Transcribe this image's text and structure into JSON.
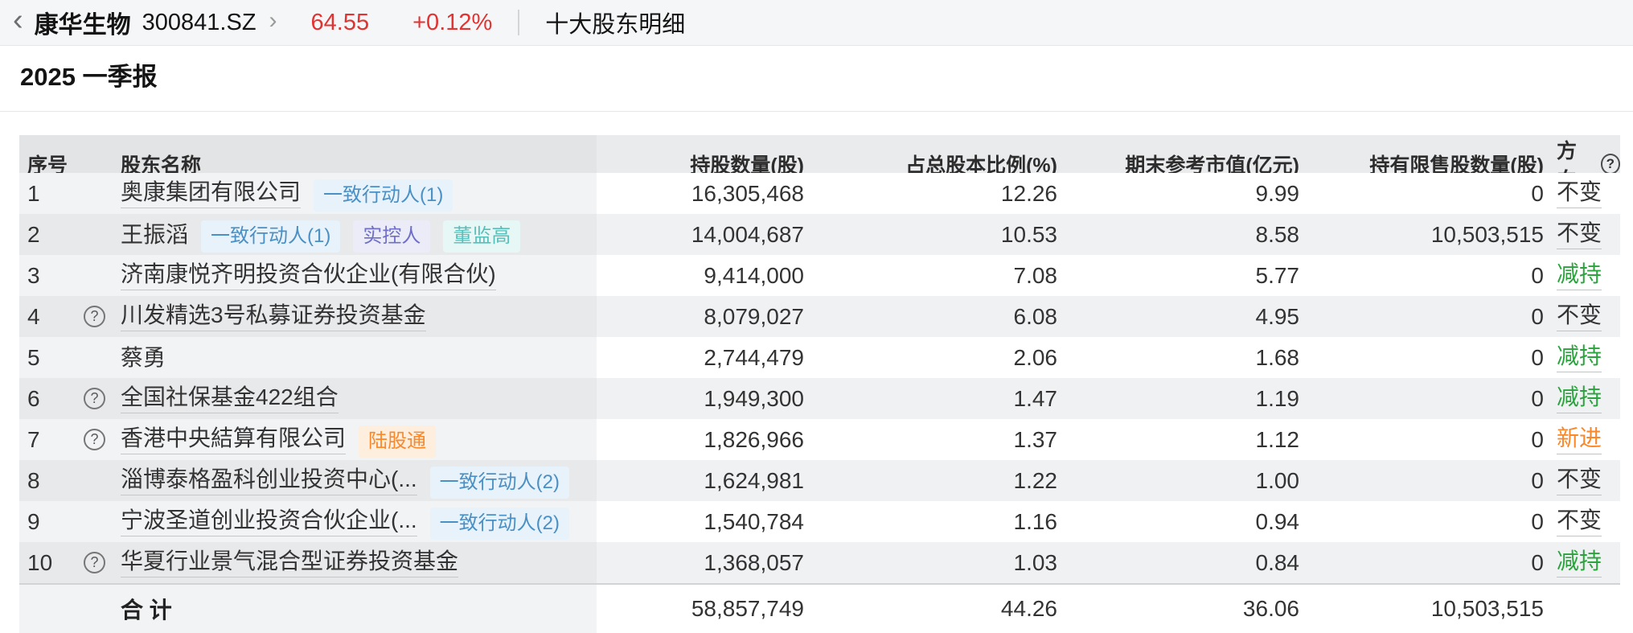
{
  "topbar": {
    "back_icon": "‹",
    "stock_name": "康华生物",
    "stock_code": "300841.SZ",
    "forward_icon": "›",
    "price": "64.55",
    "change": "+0.12%",
    "page_title": "十大股东明细"
  },
  "section": {
    "title": "2025 一季报"
  },
  "table": {
    "columns": {
      "no": "序号",
      "name": "股东名称",
      "shares": "持股数量(股)",
      "pct": "占总股本比例(%)",
      "market_value": "期末参考市值(亿元)",
      "restricted": "持有限售股数量(股)",
      "direction": "方向",
      "direction_help_icon": "?"
    },
    "rows": [
      {
        "no": "1",
        "help": false,
        "name": "奥康集团有限公司",
        "link": true,
        "badges": [
          {
            "text": "一致行动人(1)",
            "type": "acting"
          }
        ],
        "shares": "16,305,468",
        "pct": "12.26",
        "market_value": "9.99",
        "restricted": "0",
        "direction": "不变",
        "direction_type": "unchanged"
      },
      {
        "no": "2",
        "help": false,
        "name": "王振滔",
        "link": false,
        "badges": [
          {
            "text": "一致行动人(1)",
            "type": "acting"
          },
          {
            "text": "实控人",
            "type": "controller"
          },
          {
            "text": "董监高",
            "type": "executive"
          }
        ],
        "shares": "14,004,687",
        "pct": "10.53",
        "market_value": "8.58",
        "restricted": "10,503,515",
        "direction": "不变",
        "direction_type": "unchanged"
      },
      {
        "no": "3",
        "help": false,
        "name": "济南康悦齐明投资合伙企业(有限合伙)",
        "link": true,
        "badges": [],
        "shares": "9,414,000",
        "pct": "7.08",
        "market_value": "5.77",
        "restricted": "0",
        "direction": "减持",
        "direction_type": "reduce"
      },
      {
        "no": "4",
        "help": true,
        "name": "川发精选3号私募证券投资基金",
        "link": true,
        "badges": [],
        "shares": "8,079,027",
        "pct": "6.08",
        "market_value": "4.95",
        "restricted": "0",
        "direction": "不变",
        "direction_type": "unchanged"
      },
      {
        "no": "5",
        "help": false,
        "name": "蔡勇",
        "link": false,
        "badges": [],
        "shares": "2,744,479",
        "pct": "2.06",
        "market_value": "1.68",
        "restricted": "0",
        "direction": "减持",
        "direction_type": "reduce"
      },
      {
        "no": "6",
        "help": true,
        "name": "全国社保基金422组合",
        "link": true,
        "badges": [],
        "shares": "1,949,300",
        "pct": "1.47",
        "market_value": "1.19",
        "restricted": "0",
        "direction": "减持",
        "direction_type": "reduce"
      },
      {
        "no": "7",
        "help": true,
        "name": "香港中央結算有限公司",
        "link": true,
        "badges": [
          {
            "text": "陆股通",
            "type": "hk"
          }
        ],
        "shares": "1,826,966",
        "pct": "1.37",
        "market_value": "1.12",
        "restricted": "0",
        "direction": "新进",
        "direction_type": "new"
      },
      {
        "no": "8",
        "help": false,
        "name": "淄博泰格盈科创业投资中心(...",
        "link": true,
        "badges": [
          {
            "text": "一致行动人(2)",
            "type": "acting"
          }
        ],
        "shares": "1,624,981",
        "pct": "1.22",
        "market_value": "1.00",
        "restricted": "0",
        "direction": "不变",
        "direction_type": "unchanged"
      },
      {
        "no": "9",
        "help": false,
        "name": "宁波圣道创业投资合伙企业(...",
        "link": true,
        "badges": [
          {
            "text": "一致行动人(2)",
            "type": "acting"
          }
        ],
        "shares": "1,540,784",
        "pct": "1.16",
        "market_value": "0.94",
        "restricted": "0",
        "direction": "不变",
        "direction_type": "unchanged"
      },
      {
        "no": "10",
        "help": true,
        "name": "华夏行业景气混合型证券投资基金",
        "link": true,
        "badges": [],
        "shares": "1,368,057",
        "pct": "1.03",
        "market_value": "0.84",
        "restricted": "0",
        "direction": "减持",
        "direction_type": "reduce"
      }
    ],
    "total": {
      "label": "合 计",
      "shares": "58,857,749",
      "pct": "44.26",
      "market_value": "36.06",
      "restricted": "10,503,515",
      "direction": ""
    }
  },
  "colors": {
    "up_red": "#e23333",
    "reduce_green": "#2aa33c",
    "new_orange": "#f9882b",
    "acting_blue": "#4a90c4",
    "controller_purple": "#6f6fc8",
    "executive_teal": "#55bfba",
    "hk_orange": "#f9882b"
  }
}
